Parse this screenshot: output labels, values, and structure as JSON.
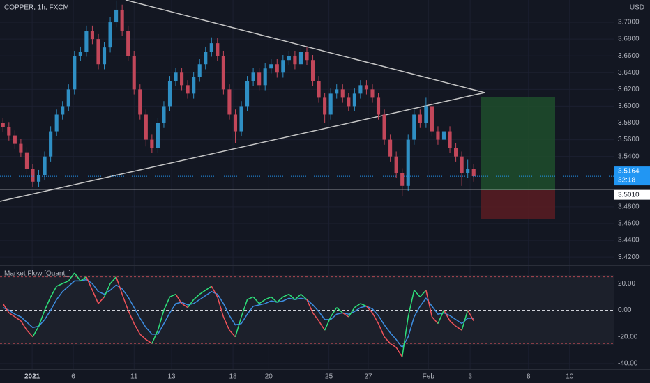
{
  "chart_data": [
    {
      "type": "candlestick",
      "title": "COPPER, 1h, FXCM",
      "currency": "USD",
      "up_color": "#2f8fc4",
      "down_color": "#c2475a",
      "grid": true,
      "xlim": [
        0,
        103
      ],
      "xticks": [
        {
          "value": 5.4,
          "label": "2021"
        },
        {
          "value": 12.3,
          "label": "6"
        },
        {
          "value": 22.5,
          "label": "11"
        },
        {
          "value": 28.8,
          "label": "13"
        },
        {
          "value": 39.1,
          "label": "18"
        },
        {
          "value": 45.1,
          "label": "20"
        },
        {
          "value": 55.2,
          "label": "25"
        },
        {
          "value": 61.8,
          "label": "27"
        },
        {
          "value": 71.9,
          "label": "Feb"
        },
        {
          "value": 78.9,
          "label": "3"
        },
        {
          "value": 88.7,
          "label": "8"
        },
        {
          "value": 95.6,
          "label": "10"
        }
      ],
      "ylim": [
        3.411,
        3.7266
      ],
      "yticks": [
        {
          "value": 3.7,
          "label": "3.7000"
        },
        {
          "value": 3.68,
          "label": "3.6800"
        },
        {
          "value": 3.66,
          "label": "3.6600"
        },
        {
          "value": 3.64,
          "label": "3.6400"
        },
        {
          "value": 3.62,
          "label": "3.6200"
        },
        {
          "value": 3.6,
          "label": "3.6000"
        },
        {
          "value": 3.58,
          "label": "3.5800"
        },
        {
          "value": 3.56,
          "label": "3.5600"
        },
        {
          "value": 3.54,
          "label": "3.5400"
        },
        {
          "value": 3.48,
          "label": "3.4800"
        },
        {
          "value": 3.46,
          "label": "3.4600"
        },
        {
          "value": 3.44,
          "label": "3.4400"
        },
        {
          "value": 3.42,
          "label": "3.4200"
        }
      ],
      "open": [
        3.58,
        3.575,
        3.565,
        3.555,
        3.545,
        3.525,
        3.51,
        3.518,
        3.54,
        3.57,
        3.59,
        3.6,
        3.62,
        3.66,
        3.665,
        3.69,
        3.68,
        3.65,
        3.67,
        3.7,
        3.715,
        3.69,
        3.66,
        3.62,
        3.59,
        3.56,
        3.55,
        3.58,
        3.6,
        3.63,
        3.64,
        3.625,
        3.615,
        3.635,
        3.65,
        3.665,
        3.675,
        3.66,
        3.62,
        3.59,
        3.57,
        3.6,
        3.63,
        3.64,
        3.625,
        3.645,
        3.65,
        3.64,
        3.655,
        3.66,
        3.65,
        3.665,
        3.655,
        3.63,
        3.61,
        3.59,
        3.615,
        3.62,
        3.61,
        3.6,
        3.615,
        3.625,
        3.62,
        3.61,
        3.59,
        3.56,
        3.54,
        3.52,
        3.505,
        3.56,
        3.59,
        3.58,
        3.6,
        3.57,
        3.56,
        3.57,
        3.55,
        3.54,
        3.52,
        3.525
      ],
      "high": [
        3.586,
        3.581,
        3.571,
        3.561,
        3.551,
        3.531,
        3.524,
        3.546,
        3.576,
        3.596,
        3.606,
        3.626,
        3.666,
        3.671,
        3.696,
        3.696,
        3.686,
        3.676,
        3.706,
        3.726,
        3.721,
        3.696,
        3.666,
        3.626,
        3.596,
        3.566,
        3.586,
        3.606,
        3.636,
        3.646,
        3.646,
        3.631,
        3.641,
        3.656,
        3.671,
        3.682,
        3.681,
        3.666,
        3.626,
        3.596,
        3.606,
        3.636,
        3.646,
        3.646,
        3.651,
        3.656,
        3.656,
        3.661,
        3.666,
        3.666,
        3.672,
        3.671,
        3.661,
        3.636,
        3.616,
        3.621,
        3.626,
        3.626,
        3.616,
        3.621,
        3.631,
        3.631,
        3.626,
        3.616,
        3.596,
        3.566,
        3.546,
        3.526,
        3.566,
        3.596,
        3.596,
        3.61,
        3.606,
        3.576,
        3.576,
        3.576,
        3.556,
        3.546,
        3.536,
        3.531
      ],
      "low": [
        3.569,
        3.559,
        3.549,
        3.539,
        3.519,
        3.504,
        3.504,
        3.512,
        3.534,
        3.564,
        3.584,
        3.594,
        3.614,
        3.654,
        3.659,
        3.674,
        3.644,
        3.644,
        3.664,
        3.694,
        3.684,
        3.654,
        3.614,
        3.584,
        3.552,
        3.544,
        3.544,
        3.574,
        3.594,
        3.624,
        3.619,
        3.609,
        3.609,
        3.629,
        3.644,
        3.659,
        3.654,
        3.614,
        3.584,
        3.556,
        3.564,
        3.594,
        3.624,
        3.619,
        3.619,
        3.639,
        3.634,
        3.634,
        3.649,
        3.644,
        3.644,
        3.649,
        3.624,
        3.604,
        3.58,
        3.584,
        3.609,
        3.604,
        3.594,
        3.594,
        3.609,
        3.614,
        3.604,
        3.584,
        3.554,
        3.534,
        3.514,
        3.493,
        3.499,
        3.554,
        3.574,
        3.574,
        3.564,
        3.554,
        3.554,
        3.544,
        3.534,
        3.505,
        3.514,
        3.51
      ],
      "close": [
        3.575,
        3.565,
        3.555,
        3.545,
        3.525,
        3.51,
        3.518,
        3.54,
        3.57,
        3.59,
        3.6,
        3.62,
        3.66,
        3.665,
        3.69,
        3.68,
        3.65,
        3.67,
        3.7,
        3.715,
        3.69,
        3.66,
        3.62,
        3.59,
        3.56,
        3.55,
        3.58,
        3.6,
        3.63,
        3.64,
        3.625,
        3.615,
        3.635,
        3.65,
        3.665,
        3.675,
        3.66,
        3.62,
        3.59,
        3.57,
        3.6,
        3.63,
        3.64,
        3.625,
        3.645,
        3.65,
        3.64,
        3.655,
        3.66,
        3.65,
        3.665,
        3.655,
        3.63,
        3.61,
        3.59,
        3.615,
        3.62,
        3.61,
        3.6,
        3.615,
        3.625,
        3.62,
        3.61,
        3.59,
        3.56,
        3.54,
        3.52,
        3.505,
        3.56,
        3.59,
        3.58,
        3.6,
        3.57,
        3.56,
        3.57,
        3.55,
        3.54,
        3.52,
        3.525,
        3.5164
      ],
      "last_price": {
        "value": 3.5164,
        "label": "3.5164",
        "countdown": "32:18"
      },
      "entry_line": {
        "value": 3.501,
        "label": "3.5010"
      }
    },
    {
      "type": "oscillator",
      "title": "Market Flow [Quant_]",
      "up_color": "#2ee07a",
      "down_color": "#f0525a",
      "signal_color": "#3d8de0",
      "ylim": [
        -44.2,
        33.2
      ],
      "yticks": [
        {
          "value": 20,
          "label": "20.00"
        },
        {
          "value": 0,
          "label": "0.00"
        },
        {
          "value": -20,
          "label": "-20.00"
        },
        {
          "value": -40,
          "label": "-40.00"
        }
      ],
      "bands": [
        25,
        -25
      ],
      "fast": [
        5,
        -2,
        -5,
        -8,
        -15,
        -20,
        -12,
        0,
        10,
        18,
        20,
        22,
        28,
        22,
        25,
        15,
        5,
        10,
        20,
        25,
        12,
        0,
        -10,
        -18,
        -22,
        -25,
        -15,
        0,
        10,
        12,
        5,
        2,
        8,
        12,
        15,
        18,
        10,
        -5,
        -15,
        -20,
        -5,
        8,
        10,
        5,
        8,
        10,
        6,
        10,
        12,
        8,
        12,
        8,
        -2,
        -8,
        -15,
        -5,
        2,
        -2,
        -5,
        2,
        5,
        3,
        -2,
        -10,
        -20,
        -25,
        -28,
        -35,
        -5,
        15,
        10,
        15,
        -5,
        -10,
        0,
        -8,
        -12,
        -15,
        0,
        -8
      ],
      "signal": [
        2,
        0,
        -3,
        -5,
        -9,
        -13,
        -12,
        -7,
        0,
        8,
        14,
        18,
        22,
        22,
        23,
        20,
        14,
        12,
        15,
        19,
        16,
        10,
        2,
        -6,
        -13,
        -18,
        -18,
        -10,
        -2,
        5,
        6,
        4,
        5,
        8,
        11,
        14,
        12,
        5,
        -4,
        -11,
        -10,
        -3,
        3,
        4,
        5,
        7,
        6,
        7,
        9,
        8,
        9,
        8,
        4,
        -1,
        -7,
        -7,
        -3,
        -2,
        -3,
        -1,
        2,
        3,
        1,
        -4,
        -11,
        -17,
        -22,
        -28,
        -20,
        -5,
        3,
        9,
        3,
        -3,
        -2,
        -4,
        -7,
        -10,
        -6,
        -6
      ]
    }
  ]
}
